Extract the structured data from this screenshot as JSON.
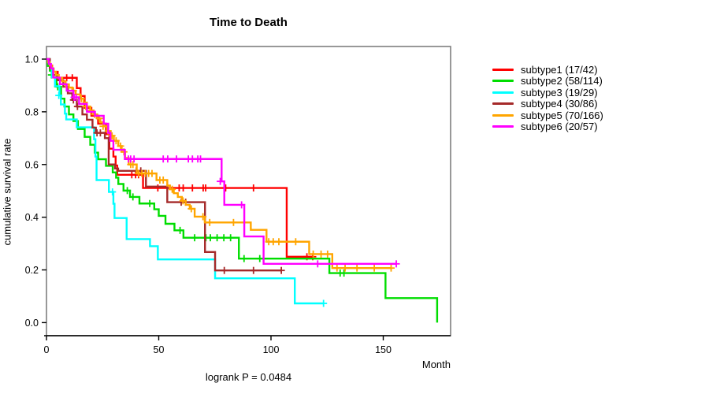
{
  "title": "Time to Death",
  "footer": "logrank P = 0.0484",
  "x_axis": {
    "label": "Month",
    "tick_labels": [
      "0",
      "50",
      "100",
      "150"
    ],
    "tick_values": [
      0,
      50,
      100,
      150
    ]
  },
  "y_axis": {
    "label": "cumulative survival rate",
    "tick_labels": [
      "0.0",
      "0.2",
      "0.4",
      "0.6",
      "0.8",
      "1.0"
    ],
    "tick_values": [
      0,
      0.2,
      0.4,
      0.6,
      0.8,
      1.0
    ]
  },
  "colors": {
    "axis_box": "#7f7f7f",
    "axis_line": "#000000",
    "text": "#000000"
  },
  "chart_data": {
    "type": "line",
    "subtype": "kaplan-meier-step-curves",
    "title": "Time to Death",
    "xlabel": "Month",
    "ylabel": "cumulative survival rate",
    "annotation": "logrank P = 0.0484",
    "xlim": [
      0,
      180
    ],
    "ylim": [
      0.0,
      1.0
    ],
    "x_ticks": [
      0,
      50,
      100,
      150
    ],
    "y_ticks": [
      0,
      0.2,
      0.4,
      0.6,
      0.8,
      1.0
    ],
    "grid": false,
    "legend_position": "right-outside",
    "series": [
      {
        "name": "subtype1",
        "legend_label": "subtype1 (17/42)",
        "events": 17,
        "n": 42,
        "color": "#ff0000",
        "steps": [
          [
            0,
            1
          ],
          [
            1,
            0.976
          ],
          [
            2.5,
            0.952
          ],
          [
            5,
            0.929
          ],
          [
            13.5,
            0.89
          ],
          [
            15.2,
            0.86
          ],
          [
            17,
            0.815
          ],
          [
            20,
            0.785
          ],
          [
            23,
            0.755
          ],
          [
            26.5,
            0.715
          ],
          [
            28,
            0.66
          ],
          [
            29.8,
            0.63
          ],
          [
            30.8,
            0.596
          ],
          [
            31.5,
            0.561
          ],
          [
            43,
            0.511
          ],
          [
            107,
            0.25
          ]
        ],
        "end_month": 118.6,
        "end_censored": true,
        "censors": [
          [
            9,
            0.929
          ],
          [
            11.5,
            0.929
          ],
          [
            38,
            0.561
          ],
          [
            39.7,
            0.561
          ],
          [
            41,
            0.561
          ],
          [
            49.6,
            0.511
          ],
          [
            59.1,
            0.511
          ],
          [
            60.9,
            0.511
          ],
          [
            65,
            0.511
          ],
          [
            69.8,
            0.511
          ],
          [
            70.9,
            0.511
          ],
          [
            79.8,
            0.511
          ],
          [
            92.2,
            0.511
          ],
          [
            116,
            0.25
          ],
          [
            118.6,
            0.25
          ]
        ]
      },
      {
        "name": "subtype2",
        "legend_label": "subtype2 (58/114)",
        "events": 58,
        "n": 114,
        "color": "#00dd00",
        "steps": [
          [
            0,
            1
          ],
          [
            0.5,
            0.974
          ],
          [
            1.5,
            0.956
          ],
          [
            2.5,
            0.94
          ],
          [
            4.5,
            0.895
          ],
          [
            6.5,
            0.85
          ],
          [
            8,
            0.82
          ],
          [
            10,
            0.79
          ],
          [
            12,
            0.765
          ],
          [
            14,
            0.735
          ],
          [
            17,
            0.705
          ],
          [
            19.5,
            0.675
          ],
          [
            21.5,
            0.645
          ],
          [
            23,
            0.62
          ],
          [
            26.5,
            0.595
          ],
          [
            29.5,
            0.57
          ],
          [
            31,
            0.55
          ],
          [
            32,
            0.526
          ],
          [
            34.3,
            0.501
          ],
          [
            37.2,
            0.477
          ],
          [
            41.4,
            0.452
          ],
          [
            48,
            0.43
          ],
          [
            50,
            0.405
          ],
          [
            53,
            0.375
          ],
          [
            57,
            0.35
          ],
          [
            61,
            0.322
          ],
          [
            85.7,
            0.243
          ],
          [
            126,
            0.188
          ],
          [
            151,
            0.093
          ],
          [
            174,
            0
          ]
        ],
        "end_month": 174,
        "end_censored": false,
        "censors": [
          [
            2.2,
            0.94
          ],
          [
            5,
            0.895
          ],
          [
            36,
            0.501
          ],
          [
            38.5,
            0.477
          ],
          [
            46,
            0.452
          ],
          [
            59.5,
            0.35
          ],
          [
            66,
            0.322
          ],
          [
            71,
            0.322
          ],
          [
            73,
            0.322
          ],
          [
            76,
            0.322
          ],
          [
            79,
            0.322
          ],
          [
            82,
            0.322
          ],
          [
            88,
            0.243
          ],
          [
            95,
            0.243
          ],
          [
            130.8,
            0.188
          ],
          [
            132.5,
            0.188
          ]
        ]
      },
      {
        "name": "subtype3",
        "legend_label": "subtype3 (19/29)",
        "events": 19,
        "n": 29,
        "color": "#00ffff",
        "steps": [
          [
            0,
            1
          ],
          [
            1.5,
            0.966
          ],
          [
            2.4,
            0.931
          ],
          [
            3.8,
            0.897
          ],
          [
            5.8,
            0.862
          ],
          [
            6.4,
            0.828
          ],
          [
            8.2,
            0.793
          ],
          [
            8.8,
            0.771
          ],
          [
            13.5,
            0.741
          ],
          [
            21.2,
            0.696
          ],
          [
            21.8,
            0.63
          ],
          [
            22.3,
            0.541
          ],
          [
            27.8,
            0.496
          ],
          [
            29.8,
            0.451
          ],
          [
            30.3,
            0.397
          ],
          [
            35.7,
            0.317
          ],
          [
            46.1,
            0.29
          ],
          [
            49.6,
            0.24
          ],
          [
            75.1,
            0.168
          ],
          [
            110.6,
            0.073
          ]
        ],
        "end_month": 123.4,
        "end_censored": true,
        "censors": [
          [
            5.5,
            0.862
          ],
          [
            29.4,
            0.496
          ],
          [
            123.4,
            0.073
          ]
        ]
      },
      {
        "name": "subtype4",
        "legend_label": "subtype4 (30/86)",
        "events": 30,
        "n": 86,
        "color": "#a52a2a",
        "steps": [
          [
            0,
            1
          ],
          [
            1.5,
            0.965
          ],
          [
            3,
            0.94
          ],
          [
            5,
            0.92
          ],
          [
            7.5,
            0.895
          ],
          [
            9.5,
            0.87
          ],
          [
            11.5,
            0.845
          ],
          [
            13.5,
            0.82
          ],
          [
            16,
            0.79
          ],
          [
            18,
            0.77
          ],
          [
            20.5,
            0.74
          ],
          [
            22,
            0.72
          ],
          [
            26,
            0.7
          ],
          [
            27.7,
            0.6
          ],
          [
            30.5,
            0.585
          ],
          [
            31.9,
            0.576
          ],
          [
            44.3,
            0.516
          ],
          [
            53.8,
            0.457
          ],
          [
            70.6,
            0.268
          ],
          [
            75.1,
            0.198
          ]
        ],
        "end_month": 104.6,
        "end_censored": true,
        "censors": [
          [
            12,
            0.845
          ],
          [
            13.8,
            0.82
          ],
          [
            22.5,
            0.72
          ],
          [
            24,
            0.72
          ],
          [
            40,
            0.576
          ],
          [
            42,
            0.576
          ],
          [
            60,
            0.457
          ],
          [
            62,
            0.457
          ],
          [
            79.2,
            0.198
          ],
          [
            92.2,
            0.198
          ],
          [
            104.6,
            0.198
          ]
        ]
      },
      {
        "name": "subtype5",
        "legend_label": "subtype5 (70/166)",
        "events": 70,
        "n": 166,
        "color": "#ffa500",
        "steps": [
          [
            0,
            1
          ],
          [
            0.7,
            0.988
          ],
          [
            1.5,
            0.976
          ],
          [
            2.3,
            0.964
          ],
          [
            3.2,
            0.952
          ],
          [
            4.2,
            0.94
          ],
          [
            5.5,
            0.928
          ],
          [
            7,
            0.916
          ],
          [
            8.5,
            0.904
          ],
          [
            10,
            0.892
          ],
          [
            11.5,
            0.88
          ],
          [
            13,
            0.866
          ],
          [
            15,
            0.85
          ],
          [
            16.5,
            0.835
          ],
          [
            18,
            0.82
          ],
          [
            19.5,
            0.805
          ],
          [
            21,
            0.79
          ],
          [
            22.5,
            0.775
          ],
          [
            24,
            0.76
          ],
          [
            25.5,
            0.745
          ],
          [
            27,
            0.727
          ],
          [
            28.5,
            0.709
          ],
          [
            30,
            0.69
          ],
          [
            32,
            0.67
          ],
          [
            33.5,
            0.648
          ],
          [
            35,
            0.625
          ],
          [
            36.6,
            0.6
          ],
          [
            40.2,
            0.566
          ],
          [
            49,
            0.541
          ],
          [
            53.8,
            0.52
          ],
          [
            55,
            0.506
          ],
          [
            56.7,
            0.491
          ],
          [
            58.5,
            0.477
          ],
          [
            60.3,
            0.462
          ],
          [
            62,
            0.447
          ],
          [
            63.8,
            0.432
          ],
          [
            66,
            0.402
          ],
          [
            70.5,
            0.38
          ],
          [
            91,
            0.352
          ],
          [
            98,
            0.307
          ],
          [
            117,
            0.26
          ],
          [
            127.3,
            0.207
          ]
        ],
        "end_month": 153.5,
        "end_censored": true,
        "censors": [
          [
            8.5,
            0.904
          ],
          [
            12,
            0.88
          ],
          [
            15.5,
            0.85
          ],
          [
            17.5,
            0.82
          ],
          [
            19.7,
            0.805
          ],
          [
            21.5,
            0.79
          ],
          [
            23.5,
            0.775
          ],
          [
            25.2,
            0.745
          ],
          [
            27.5,
            0.727
          ],
          [
            29.2,
            0.709
          ],
          [
            31,
            0.69
          ],
          [
            33,
            0.67
          ],
          [
            34.5,
            0.648
          ],
          [
            37.5,
            0.6
          ],
          [
            38.5,
            0.6
          ],
          [
            41,
            0.566
          ],
          [
            42.5,
            0.566
          ],
          [
            44,
            0.566
          ],
          [
            45.5,
            0.566
          ],
          [
            47,
            0.566
          ],
          [
            50.5,
            0.541
          ],
          [
            52,
            0.541
          ],
          [
            56,
            0.506
          ],
          [
            60.8,
            0.462
          ],
          [
            64.5,
            0.432
          ],
          [
            69.7,
            0.402
          ],
          [
            72.7,
            0.38
          ],
          [
            83.3,
            0.38
          ],
          [
            99,
            0.307
          ],
          [
            101,
            0.307
          ],
          [
            103.5,
            0.307
          ],
          [
            111,
            0.307
          ],
          [
            118.8,
            0.26
          ],
          [
            122.3,
            0.26
          ],
          [
            125.2,
            0.26
          ],
          [
            129.4,
            0.207
          ],
          [
            133,
            0.207
          ],
          [
            138.3,
            0.207
          ],
          [
            146,
            0.207
          ],
          [
            153.5,
            0.207
          ]
        ]
      },
      {
        "name": "subtype6",
        "legend_label": "subtype6 (20/57)",
        "events": 20,
        "n": 57,
        "color": "#ff00ff",
        "steps": [
          [
            0,
            1
          ],
          [
            1,
            0.982
          ],
          [
            2,
            0.965
          ],
          [
            3,
            0.93
          ],
          [
            6,
            0.905
          ],
          [
            9,
            0.88
          ],
          [
            12,
            0.855
          ],
          [
            14.5,
            0.83
          ],
          [
            18,
            0.8
          ],
          [
            21.6,
            0.785
          ],
          [
            25.5,
            0.755
          ],
          [
            27.5,
            0.72
          ],
          [
            28.5,
            0.69
          ],
          [
            29.8,
            0.656
          ],
          [
            34.9,
            0.621
          ],
          [
            78,
            0.536
          ],
          [
            79.2,
            0.447
          ],
          [
            88.1,
            0.327
          ],
          [
            96.7,
            0.223
          ]
        ],
        "end_month": 155.8,
        "end_censored": true,
        "censors": [
          [
            12.3,
            0.855
          ],
          [
            13.2,
            0.855
          ],
          [
            36.5,
            0.621
          ],
          [
            37.5,
            0.621
          ],
          [
            39,
            0.621
          ],
          [
            52,
            0.621
          ],
          [
            54,
            0.621
          ],
          [
            57.9,
            0.621
          ],
          [
            63.2,
            0.621
          ],
          [
            65,
            0.621
          ],
          [
            67.4,
            0.621
          ],
          [
            68.6,
            0.621
          ],
          [
            77.4,
            0.536
          ],
          [
            86.9,
            0.447
          ],
          [
            120.8,
            0.223
          ],
          [
            155.8,
            0.223
          ]
        ]
      }
    ]
  }
}
